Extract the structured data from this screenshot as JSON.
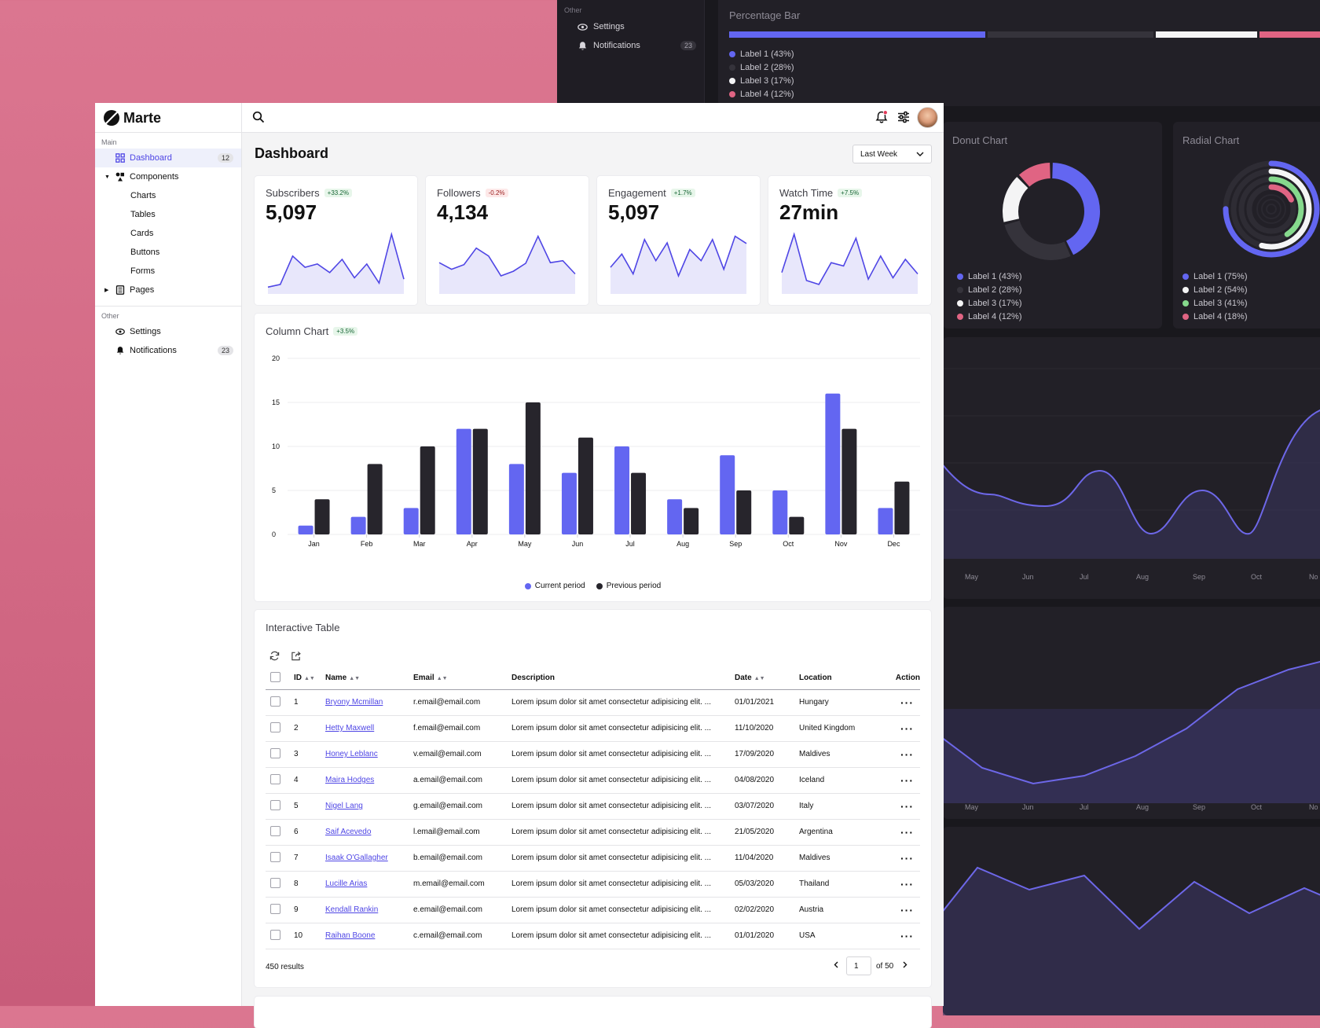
{
  "app": {
    "name": "Marte"
  },
  "sidebar": {
    "group_main": "Main",
    "group_other": "Other",
    "items": [
      {
        "label": "Dashboard",
        "badge": "12"
      },
      {
        "label": "Components"
      },
      {
        "label": "Charts"
      },
      {
        "label": "Tables"
      },
      {
        "label": "Cards"
      },
      {
        "label": "Buttons"
      },
      {
        "label": "Forms"
      },
      {
        "label": "Pages"
      }
    ],
    "other_items": [
      {
        "label": "Settings"
      },
      {
        "label": "Notifications",
        "badge": "23"
      }
    ]
  },
  "header": {
    "title": "Dashboard",
    "range": "Last Week"
  },
  "kpis": [
    {
      "label": "Subscribers",
      "change": "+33.2%",
      "value": "5,097",
      "spark": [
        8,
        12,
        55,
        38,
        43,
        30,
        50,
        22,
        43,
        14,
        88,
        20
      ]
    },
    {
      "label": "Followers",
      "change": "-0.2%",
      "value": "4,134",
      "spark": [
        45,
        35,
        42,
        67,
        55,
        25,
        32,
        44,
        85,
        45,
        48,
        28
      ]
    },
    {
      "label": "Engagement",
      "change": "+1.7%",
      "value": "5,097",
      "spark": [
        38,
        58,
        28,
        80,
        48,
        75,
        25,
        65,
        48,
        80,
        35,
        85,
        74
      ]
    },
    {
      "label": "Watch Time",
      "change": "+7.5%",
      "value": "27min",
      "spark": [
        30,
        88,
        18,
        12,
        45,
        40,
        82,
        20,
        55,
        22,
        50,
        28
      ]
    }
  ],
  "column_chart": {
    "title": "Column Chart",
    "change": "+3.5%"
  },
  "chart_data": {
    "type": "bar",
    "categories": [
      "Jan",
      "Feb",
      "Mar",
      "Apr",
      "May",
      "Jun",
      "Jul",
      "Aug",
      "Sep",
      "Oct",
      "Nov",
      "Dec"
    ],
    "series": [
      {
        "name": "Current period",
        "values": [
          1,
          2,
          3,
          12,
          8,
          7,
          10,
          4,
          9,
          5,
          16,
          3
        ],
        "color": "#6366f1"
      },
      {
        "name": "Previous period",
        "values": [
          4,
          8,
          10,
          12,
          15,
          11,
          7,
          3,
          5,
          2,
          12,
          6
        ],
        "color": "#27252c"
      }
    ],
    "ylim": [
      0,
      20
    ],
    "yticks": [
      "0",
      "5",
      "10",
      "15",
      "20"
    ],
    "grid": true,
    "legend": "bottom"
  },
  "table": {
    "title": "Interactive Table",
    "columns": [
      "ID",
      "Name",
      "Email",
      "Description",
      "Date",
      "Location",
      "Action"
    ],
    "rows": [
      {
        "id": "1",
        "name": "Bryony Mcmillan",
        "email": "r.email@email.com",
        "desc": "Lorem ipsum dolor sit amet consectetur adipisicing elit. ...",
        "date": "01/01/2021",
        "location": "Hungary"
      },
      {
        "id": "2",
        "name": "Hetty Maxwell",
        "email": "f.email@email.com",
        "desc": "Lorem ipsum dolor sit amet consectetur adipisicing elit. ...",
        "date": "11/10/2020",
        "location": "United Kingdom"
      },
      {
        "id": "3",
        "name": "Honey Leblanc",
        "email": "v.email@email.com",
        "desc": "Lorem ipsum dolor sit amet consectetur adipisicing elit. ...",
        "date": "17/09/2020",
        "location": "Maldives"
      },
      {
        "id": "4",
        "name": "Maira Hodges",
        "email": "a.email@email.com",
        "desc": "Lorem ipsum dolor sit amet consectetur adipisicing elit. ...",
        "date": "04/08/2020",
        "location": "Iceland"
      },
      {
        "id": "5",
        "name": "Nigel Lang",
        "email": "g.email@email.com",
        "desc": "Lorem ipsum dolor sit amet consectetur adipisicing elit. ...",
        "date": "03/07/2020",
        "location": "Italy"
      },
      {
        "id": "6",
        "name": "Saif Acevedo",
        "email": "l.email@email.com",
        "desc": "Lorem ipsum dolor sit amet consectetur adipisicing elit. ...",
        "date": "21/05/2020",
        "location": "Argentina"
      },
      {
        "id": "7",
        "name": "Isaak O'Gallagher",
        "email": "b.email@email.com",
        "desc": "Lorem ipsum dolor sit amet consectetur adipisicing elit. ...",
        "date": "11/04/2020",
        "location": "Maldives"
      },
      {
        "id": "8",
        "name": "Lucille Arias",
        "email": "m.email@email.com",
        "desc": "Lorem ipsum dolor sit amet consectetur adipisicing elit. ...",
        "date": "05/03/2020",
        "location": "Thailand"
      },
      {
        "id": "9",
        "name": "Kendall Rankin",
        "email": "e.email@email.com",
        "desc": "Lorem ipsum dolor sit amet consectetur adipisicing elit. ...",
        "date": "02/02/2020",
        "location": "Austria"
      },
      {
        "id": "10",
        "name": "Raihan Boone",
        "email": "c.email@email.com",
        "desc": "Lorem ipsum dolor sit amet consectetur adipisicing elit. ...",
        "date": "01/01/2020",
        "location": "USA"
      }
    ],
    "results": "450 results",
    "page": "1",
    "page_total": "of 50"
  },
  "dark": {
    "sidebar_group": "Other",
    "settings": "Settings",
    "notifications": "Notifications",
    "notifications_badge": "23",
    "percentage_bar": {
      "title": "Percentage Bar",
      "legend": [
        "Label 1 (43%)",
        "Label 2 (28%)",
        "Label 3 (17%)",
        "Label 4 (12%)"
      ],
      "values": [
        43,
        28,
        17,
        12
      ]
    },
    "donut": {
      "title": "Donut Chart",
      "legend": [
        "Label 1 (43%)",
        "Label 2 (28%)",
        "Label 3 (17%)",
        "Label 4 (12%)"
      ],
      "values": [
        43,
        28,
        17,
        12
      ]
    },
    "radial": {
      "title": "Radial Chart",
      "legend": [
        "Label 1 (75%)",
        "Label 2 (54%)",
        "Label 3 (41%)",
        "Label 4 (18%)"
      ],
      "values": [
        75,
        54,
        41,
        18
      ]
    },
    "months_a": [
      "May",
      "Jun",
      "Jul",
      "Aug",
      "Sep",
      "Oct",
      "No"
    ],
    "months_b": [
      "May",
      "Jun",
      "Jul",
      "Aug",
      "Sep",
      "Oct",
      "No"
    ]
  },
  "colors": {
    "accent": "#6366f1",
    "dark_bar": "#27252c",
    "white": "#ffffff",
    "pink": "#e06483"
  }
}
